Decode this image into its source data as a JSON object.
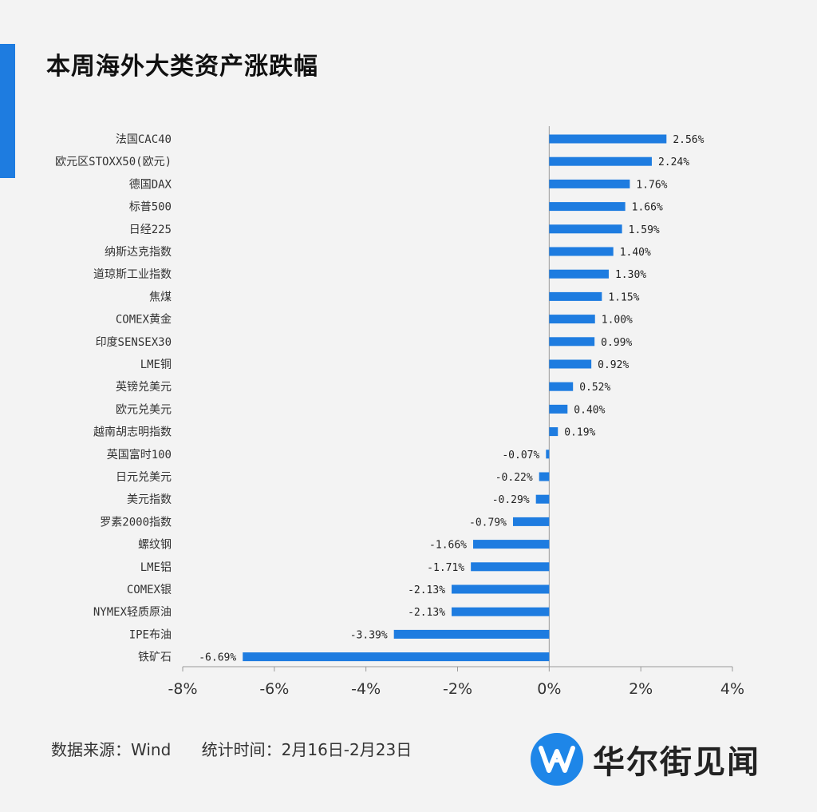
{
  "header": {
    "title": "本周海外大类资产涨跌幅"
  },
  "footer": {
    "source": "数据来源：Wind",
    "period": "统计时间：2月16日-2月23日"
  },
  "brand": {
    "name": "华尔街见闻",
    "logo_icon": "wallstreetcn-logo-icon",
    "accent": "#1e7ce0"
  },
  "chart_data": {
    "type": "bar",
    "orientation": "horizontal",
    "title": "本周海外大类资产涨跌幅",
    "bar_color": "#1e7ce0",
    "categories": [
      "法国CAC40",
      "欧元区STOXX50(欧元)",
      "德国DAX",
      "标普500",
      "日经225",
      "纳斯达克指数",
      "道琼斯工业指数",
      "焦煤",
      "COMEX黄金",
      "印度SENSEX30",
      "LME铜",
      "英镑兑美元",
      "欧元兑美元",
      "越南胡志明指数",
      "英国富时100",
      "日元兑美元",
      "美元指数",
      "罗素2000指数",
      "螺纹钢",
      "LME铝",
      "COMEX银",
      "NYMEX轻质原油",
      "IPE布油",
      "铁矿石"
    ],
    "values": [
      2.56,
      2.24,
      1.76,
      1.66,
      1.59,
      1.4,
      1.3,
      1.15,
      1.0,
      0.99,
      0.92,
      0.52,
      0.4,
      0.19,
      -0.07,
      -0.22,
      -0.29,
      -0.79,
      -1.66,
      -1.71,
      -2.13,
      -2.13,
      -3.39,
      -6.69
    ],
    "value_labels": [
      "2.56%",
      "2.24%",
      "1.76%",
      "1.66%",
      "1.59%",
      "1.40%",
      "1.30%",
      "1.15%",
      "1.00%",
      "0.99%",
      "0.92%",
      "0.52%",
      "0.40%",
      "0.19%",
      "-0.07%",
      "-0.22%",
      "-0.29%",
      "-0.79%",
      "-1.66%",
      "-1.71%",
      "-2.13%",
      "-2.13%",
      "-3.39%",
      "-6.69%"
    ],
    "xlim": [
      -8,
      4
    ],
    "xticks": [
      -8,
      -6,
      -4,
      -2,
      0,
      2,
      4
    ],
    "xtick_labels": [
      "-8%",
      "-6%",
      "-4%",
      "-2%",
      "0%",
      "2%",
      "4%"
    ],
    "grid": false,
    "legend": "none"
  }
}
